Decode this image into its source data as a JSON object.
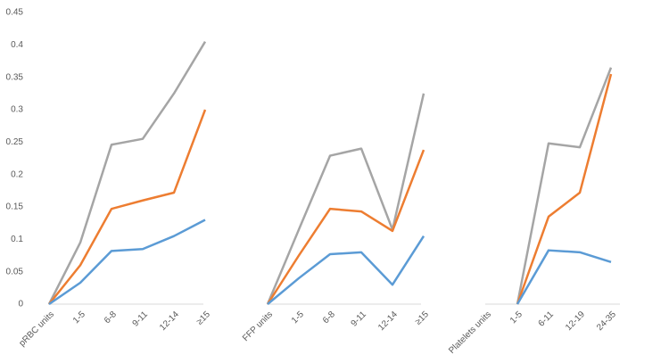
{
  "chart_data": [
    {
      "type": "line",
      "categories": [
        "pRBC units",
        "1-5",
        "6-8",
        "9-11",
        "12-14",
        "≥15"
      ],
      "series": [
        {
          "color": "#a5a5a5",
          "values": [
            0,
            0.095,
            0.246,
            0.255,
            0.325,
            0.405
          ]
        },
        {
          "color": "#ed7d31",
          "values": [
            0,
            0.06,
            0.147,
            0.16,
            0.172,
            0.3
          ]
        },
        {
          "color": "#5b9bd5",
          "values": [
            0,
            0.033,
            0.082,
            0.085,
            0.105,
            0.13
          ]
        }
      ],
      "ylim": [
        0,
        0.45
      ],
      "yticks": [
        0,
        0.05,
        0.1,
        0.15,
        0.2,
        0.25,
        0.3,
        0.35,
        0.4,
        0.45
      ]
    },
    {
      "type": "line",
      "categories": [
        "FFP units",
        "1-5",
        "6-8",
        "9-11",
        "12-14",
        "≥15"
      ],
      "series": [
        {
          "color": "#a5a5a5",
          "values": [
            0,
            0.115,
            0.229,
            0.24,
            0.115,
            0.325
          ]
        },
        {
          "color": "#ed7d31",
          "values": [
            0,
            0.075,
            0.147,
            0.143,
            0.113,
            0.238
          ]
        },
        {
          "color": "#5b9bd5",
          "values": [
            0,
            0.04,
            0.077,
            0.08,
            0.03,
            0.105
          ]
        }
      ],
      "ylim": [
        0,
        0.45
      ]
    },
    {
      "type": "line",
      "categories": [
        "Platelets units",
        "1-5",
        "6-11",
        "12-19",
        "24-35"
      ],
      "series": [
        {
          "color": "#a5a5a5",
          "values": [
            null,
            0,
            0.248,
            0.242,
            0.365
          ]
        },
        {
          "color": "#ed7d31",
          "values": [
            null,
            0,
            0.135,
            0.172,
            0.355
          ]
        },
        {
          "color": "#5b9bd5",
          "values": [
            null,
            0,
            0.083,
            0.08,
            0.065
          ]
        }
      ],
      "ylim": [
        0,
        0.45
      ]
    }
  ]
}
